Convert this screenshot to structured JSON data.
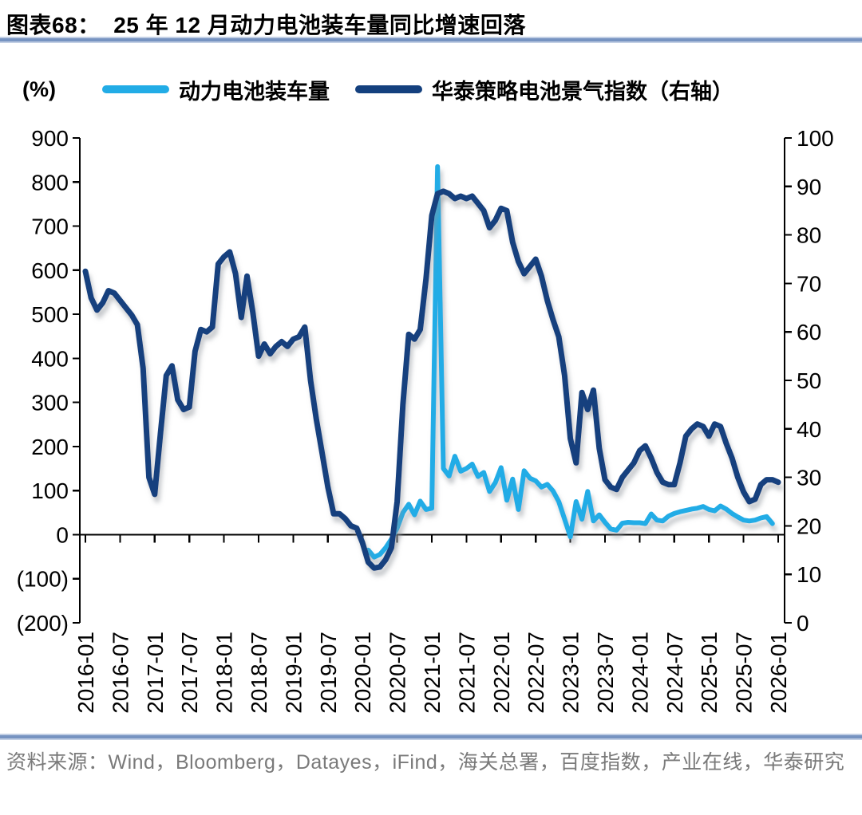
{
  "header": {
    "title": "图表68：  25 年 12 月动力电池装车量同比增速回落",
    "unit_label": "(%)"
  },
  "legend": {
    "items": [
      {
        "label": "动力电池装车量",
        "color": "#22ace6"
      },
      {
        "label": "华泰策略电池景气指数（右轴）",
        "color": "#14407e"
      }
    ]
  },
  "footer": {
    "source": "资料来源：Wind，Bloomberg，Datayes，iFind，海关总署，百度指数，产业在线，华泰研究"
  },
  "chart_data": {
    "type": "line",
    "title": "25 年 12 月动力电池装车量同比增速回落",
    "legend_position": "top",
    "grid": false,
    "x_start": "2016-01",
    "x_end": "2026-01",
    "x_frequency": "monthly",
    "x_tick_labels": [
      "2016-01",
      "2016-07",
      "2017-01",
      "2017-07",
      "2018-01",
      "2018-07",
      "2019-01",
      "2019-07",
      "2020-01",
      "2020-07",
      "2021-01",
      "2021-07",
      "2022-01",
      "2022-07",
      "2023-01",
      "2023-07",
      "2024-01",
      "2024-07",
      "2025-01",
      "2025-07",
      "2026-01"
    ],
    "left_axis": {
      "label": "(%)",
      "min": -200,
      "max": 900,
      "ticks": [
        "900",
        "800",
        "700",
        "600",
        "500",
        "400",
        "300",
        "200",
        "100",
        "0",
        "(100)",
        "(200)"
      ]
    },
    "right_axis": {
      "label": "",
      "min": 0,
      "max": 100,
      "ticks": [
        "100",
        "90",
        "80",
        "70",
        "60",
        "50",
        "40",
        "30",
        "20",
        "10",
        "0"
      ]
    },
    "series": [
      {
        "id": "battery-install-yoy",
        "name": "动力电池装车量",
        "axis": "left",
        "color": "#22ace6",
        "start": "2020-02",
        "start_index": 49,
        "values": [
          -35,
          -51,
          -45,
          -30,
          -10,
          15,
          50,
          69,
          45,
          76,
          57,
          60,
          835,
          150,
          133,
          178,
          144,
          150,
          160,
          132,
          141,
          98,
          118,
          152,
          78,
          126,
          57,
          145,
          128,
          122,
          108,
          114,
          99,
          75,
          35,
          -5,
          75,
          35,
          98,
          31,
          45,
          28,
          13,
          10,
          26,
          28,
          27,
          27,
          25,
          47,
          33,
          31,
          42,
          48,
          52,
          55,
          58,
          60,
          64,
          57,
          54,
          65,
          58,
          48,
          40,
          33,
          31,
          33,
          38,
          41,
          25
        ]
      },
      {
        "id": "battery-boom-index",
        "name": "华泰策略电池景气指数（右轴）",
        "axis": "right",
        "color": "#14407e",
        "start": "2016-01",
        "start_index": 0,
        "values": [
          72.5,
          67,
          64.5,
          66,
          68.5,
          68,
          66.5,
          65,
          63.5,
          61.5,
          52.5,
          30,
          26.5,
          39,
          51,
          53,
          46,
          44,
          44.5,
          56,
          60.5,
          60,
          61,
          74,
          75.5,
          76.5,
          72,
          63,
          71.5,
          64,
          55,
          57.5,
          55.5,
          57,
          58,
          57,
          58.5,
          59,
          61,
          50,
          42,
          35,
          28,
          22.5,
          22.5,
          21.5,
          20,
          19.5,
          16.5,
          12.5,
          11.3,
          11.5,
          13,
          15.5,
          25,
          45,
          59.5,
          58.5,
          60.5,
          71,
          84,
          88.5,
          89,
          88.5,
          87.5,
          88,
          87.5,
          88,
          86.5,
          85,
          81.5,
          83,
          85.5,
          85,
          78.5,
          74.5,
          72,
          73.5,
          75,
          71.5,
          66.5,
          62.5,
          59,
          51,
          38,
          33,
          47.5,
          44,
          48,
          36,
          29.5,
          28,
          27.5,
          30,
          31.5,
          33,
          35.5,
          36.5,
          34,
          31,
          29,
          28.5,
          28.5,
          33,
          38.5,
          40,
          41,
          40.5,
          38.5,
          41,
          40.5,
          37,
          34,
          30,
          27,
          25,
          25.5,
          28.5,
          29.5,
          29.5,
          29
        ]
      }
    ]
  }
}
